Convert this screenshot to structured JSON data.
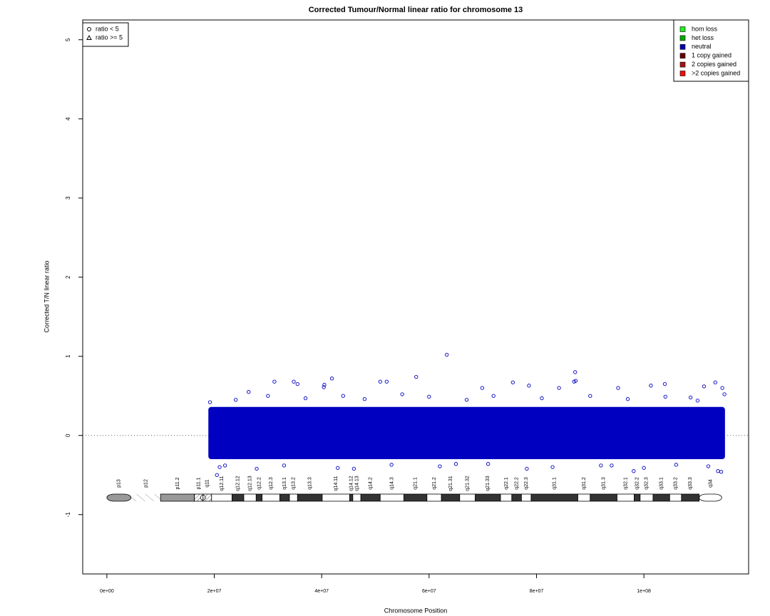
{
  "chart_data": {
    "type": "scatter",
    "title": "Corrected Tumour/Normal linear ratio for chromosome  13",
    "x_label": "Chromosome Position",
    "y_label": "Corrected T/N linear ratio",
    "xlim": [
      -4500000,
      119500000
    ],
    "ylim": [
      -1.75,
      5.25
    ],
    "xticks": [
      {
        "value": 0,
        "label": "0e+00"
      },
      {
        "value": 20000000,
        "label": "2e+07"
      },
      {
        "value": 40000000,
        "label": "4e+07"
      },
      {
        "value": 60000000,
        "label": "6e+07"
      },
      {
        "value": 80000000,
        "label": "8e+07"
      },
      {
        "value": 100000000,
        "label": "1e+08"
      }
    ],
    "yticks": [
      -1,
      0,
      1,
      2,
      3,
      4,
      5
    ],
    "hline": 0,
    "point_color": "#0000c0",
    "core": {
      "x": [
        18900000,
        115100000
      ],
      "y": [
        -0.3,
        0.36
      ]
    },
    "x": [
      63300000,
      87200000,
      57600000,
      41900000,
      35500000,
      34800000,
      31200000,
      40500000,
      40400000,
      26400000,
      20500000,
      50900000,
      52100000,
      69900000,
      75600000,
      78600000,
      84200000,
      87300000,
      87000000,
      95200000,
      101300000,
      103900000,
      111200000,
      113300000,
      114600000,
      98100000,
      113800000,
      114400000,
      27900000,
      22000000,
      46000000,
      65000000,
      78200000,
      92000000,
      106000000,
      108700000,
      19200000,
      24000000,
      30000000,
      37000000,
      44000000,
      48000000,
      55000000,
      60000000,
      67000000,
      72000000,
      81000000,
      90000000,
      97000000,
      104000000,
      110000000,
      115000000,
      21000000,
      33000000,
      43000000,
      53000000,
      62000000,
      71000000,
      83000000,
      94000000,
      100000000,
      112000000
    ],
    "y": [
      1.02,
      0.8,
      0.74,
      0.72,
      0.65,
      0.68,
      0.68,
      0.64,
      0.61,
      0.55,
      -0.5,
      0.68,
      0.68,
      0.6,
      0.67,
      0.63,
      0.6,
      0.69,
      0.68,
      0.6,
      0.63,
      0.65,
      0.62,
      0.67,
      0.6,
      -0.45,
      -0.45,
      -0.46,
      -0.42,
      -0.38,
      -0.42,
      -0.36,
      -0.42,
      -0.38,
      -0.37,
      0.48,
      0.42,
      0.45,
      0.5,
      0.47,
      0.5,
      0.46,
      0.52,
      0.49,
      0.45,
      0.5,
      0.47,
      0.5,
      0.46,
      0.49,
      0.44,
      0.52,
      -0.4,
      -0.38,
      -0.41,
      -0.37,
      -0.39,
      -0.36,
      -0.4,
      -0.38,
      -0.41,
      -0.39
    ],
    "shape_legend": [
      {
        "label": "ratio < 5",
        "marker": "circle"
      },
      {
        "label": "ratio >= 5",
        "marker": "triangle"
      }
    ],
    "copy_legend": [
      {
        "label": "hom loss",
        "color": "#22ee22"
      },
      {
        "label": "het loss",
        "color": "#00aa00"
      },
      {
        "label": "neutral",
        "color": "#0000aa"
      },
      {
        "label": "1 copy gained",
        "color": "#660000"
      },
      {
        "label": "2 copies gained",
        "color": "#aa1111"
      },
      {
        "label": ">2 copies gained",
        "color": "#ee1111"
      }
    ],
    "ideogram": [
      {
        "label": "p13",
        "start": 0,
        "end": 4500000,
        "stain": "gvar"
      },
      {
        "label": "p12",
        "start": 4500000,
        "end": 10000000,
        "stain": "stalk"
      },
      {
        "label": "p11.2",
        "start": 10000000,
        "end": 16300000,
        "stain": "gvar"
      },
      {
        "label": "p11.1",
        "start": 16300000,
        "end": 17900000,
        "stain": "acen"
      },
      {
        "label": "q11",
        "start": 17900000,
        "end": 19500000,
        "stain": "acen"
      },
      {
        "label": "q12.11",
        "start": 19500000,
        "end": 23300000,
        "stain": "gneg"
      },
      {
        "label": "q12.12",
        "start": 23300000,
        "end": 25500000,
        "stain": "gpos"
      },
      {
        "label": "q12.13",
        "start": 25500000,
        "end": 27800000,
        "stain": "gneg"
      },
      {
        "label": "q12.2",
        "start": 27800000,
        "end": 28900000,
        "stain": "gpos"
      },
      {
        "label": "q12.3",
        "start": 28900000,
        "end": 32200000,
        "stain": "gneg"
      },
      {
        "label": "q13.1",
        "start": 32200000,
        "end": 34000000,
        "stain": "gpos"
      },
      {
        "label": "q13.2",
        "start": 34000000,
        "end": 35500000,
        "stain": "gneg"
      },
      {
        "label": "q13.3",
        "start": 35500000,
        "end": 40100000,
        "stain": "gpos"
      },
      {
        "label": "q14.11",
        "start": 40100000,
        "end": 45200000,
        "stain": "gneg"
      },
      {
        "label": "q14.12",
        "start": 45200000,
        "end": 45800000,
        "stain": "gpos"
      },
      {
        "label": "q14.13",
        "start": 45800000,
        "end": 47300000,
        "stain": "gneg"
      },
      {
        "label": "q14.2",
        "start": 47300000,
        "end": 50900000,
        "stain": "gpos"
      },
      {
        "label": "q14.3",
        "start": 50900000,
        "end": 55300000,
        "stain": "gneg"
      },
      {
        "label": "q21.1",
        "start": 55300000,
        "end": 59600000,
        "stain": "gpos"
      },
      {
        "label": "q21.2",
        "start": 59600000,
        "end": 62300000,
        "stain": "gneg"
      },
      {
        "label": "q21.31",
        "start": 62300000,
        "end": 65700000,
        "stain": "gpos"
      },
      {
        "label": "q21.32",
        "start": 65700000,
        "end": 68600000,
        "stain": "gneg"
      },
      {
        "label": "q21.33",
        "start": 68600000,
        "end": 73300000,
        "stain": "gpos"
      },
      {
        "label": "q22.1",
        "start": 73300000,
        "end": 75400000,
        "stain": "gneg"
      },
      {
        "label": "q22.2",
        "start": 75400000,
        "end": 77200000,
        "stain": "gpos"
      },
      {
        "label": "q22.3",
        "start": 77200000,
        "end": 79000000,
        "stain": "gneg"
      },
      {
        "label": "q31.1",
        "start": 79000000,
        "end": 87700000,
        "stain": "gpos"
      },
      {
        "label": "q31.2",
        "start": 87700000,
        "end": 90000000,
        "stain": "gneg"
      },
      {
        "label": "q31.3",
        "start": 90000000,
        "end": 95000000,
        "stain": "gpos"
      },
      {
        "label": "q32.1",
        "start": 95000000,
        "end": 98200000,
        "stain": "gneg"
      },
      {
        "label": "q32.2",
        "start": 98200000,
        "end": 99300000,
        "stain": "gpos"
      },
      {
        "label": "q32.3",
        "start": 99300000,
        "end": 101700000,
        "stain": "gneg"
      },
      {
        "label": "q33.1",
        "start": 101700000,
        "end": 104800000,
        "stain": "gpos"
      },
      {
        "label": "q33.2",
        "start": 104800000,
        "end": 107000000,
        "stain": "gneg"
      },
      {
        "label": "q33.3",
        "start": 107000000,
        "end": 110300000,
        "stain": "gpos"
      },
      {
        "label": "q34",
        "start": 110300000,
        "end": 114500000,
        "stain": "gneg"
      }
    ]
  }
}
